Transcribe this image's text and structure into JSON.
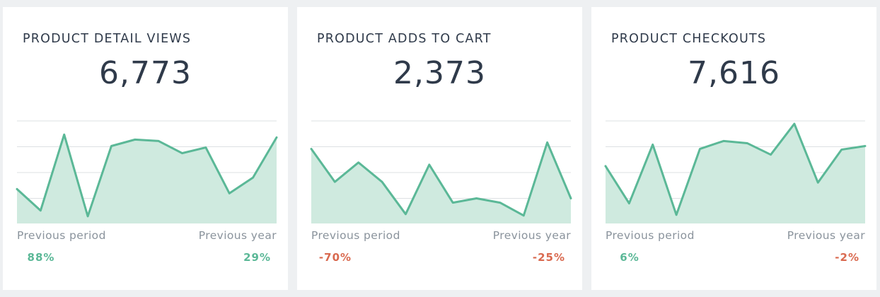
{
  "theme": {
    "positive_color": "#5bb897",
    "negative_color": "#d9694f",
    "area_fill": "#cfeadf",
    "text_color": "#2f3a4a",
    "muted_color": "#8a939c"
  },
  "cards": [
    {
      "title": "PRODUCT DETAIL VIEWS",
      "value": "6,773",
      "previous_period_label": "Previous period",
      "previous_period_pct": "88%",
      "previous_period_trend": "positive",
      "previous_year_label": "Previous year",
      "previous_year_pct": "29%",
      "previous_year_trend": "positive"
    },
    {
      "title": "PRODUCT ADDS TO CART",
      "value": "2,373",
      "previous_period_label": "Previous period",
      "previous_period_pct": "-70%",
      "previous_period_trend": "negative",
      "previous_year_label": "Previous year",
      "previous_year_pct": "-25%",
      "previous_year_trend": "negative"
    },
    {
      "title": "PRODUCT CHECKOUTS",
      "value": "7,616",
      "previous_period_label": "Previous period",
      "previous_period_pct": "6%",
      "previous_period_trend": "positive",
      "previous_year_label": "Previous year",
      "previous_year_pct": "-2%",
      "previous_year_trend": "negative"
    }
  ],
  "chart_data": [
    {
      "type": "area",
      "x": [
        1,
        2,
        3,
        4,
        5,
        6,
        7,
        8,
        9,
        10,
        11,
        12
      ],
      "values": [
        48,
        18,
        124,
        10,
        108,
        117,
        115,
        98,
        106,
        42,
        64,
        120
      ],
      "ylim": [
        0,
        144
      ],
      "grid": true,
      "gridlines": 4
    },
    {
      "type": "area",
      "x": [
        1,
        2,
        3,
        4,
        5,
        6,
        7,
        8,
        9,
        10,
        11,
        12
      ],
      "values": [
        104,
        58,
        85,
        58,
        13,
        82,
        29,
        35,
        29,
        11,
        113,
        35
      ],
      "ylim": [
        0,
        144
      ],
      "grid": true,
      "gridlines": 4
    },
    {
      "type": "area",
      "x": [
        1,
        2,
        3,
        4,
        5,
        6,
        7,
        8,
        9,
        10,
        11,
        12
      ],
      "values": [
        80,
        28,
        110,
        12,
        104,
        115,
        112,
        96,
        139,
        57,
        103,
        108
      ],
      "ylim": [
        0,
        144
      ],
      "grid": true,
      "gridlines": 4
    }
  ]
}
